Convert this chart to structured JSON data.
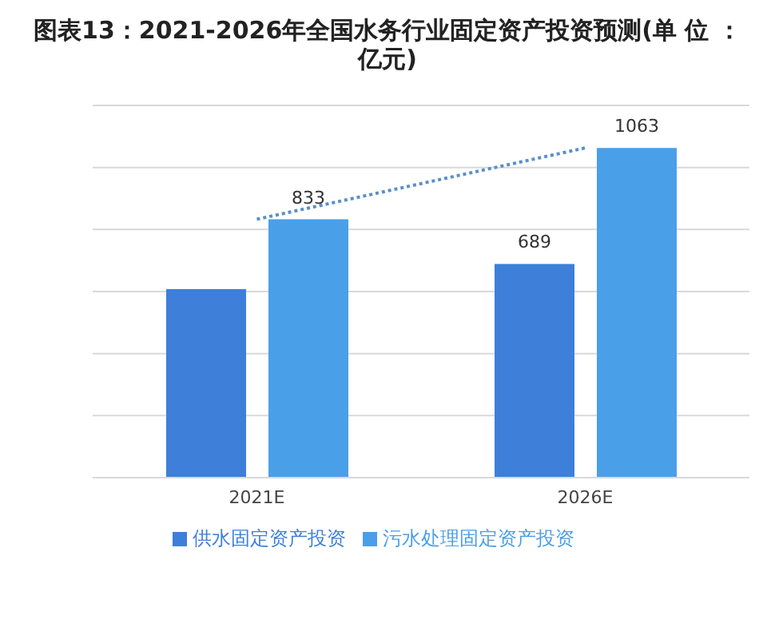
{
  "chart_data": {
    "type": "bar",
    "title": "图表13：2021-2026年全国水务行业固定资产投资预测(单 位 ：亿元)",
    "categories": [
      "2021E",
      "2026E"
    ],
    "series": [
      {
        "name": "供水固定资产投资",
        "color": "#3d7fd9",
        "values": [
          608,
          689
        ],
        "value_labels": [
          null,
          "689"
        ]
      },
      {
        "name": "污水处理固定资产投资",
        "color": "#4a9fe9",
        "values": [
          833,
          1063
        ],
        "value_labels": [
          "833",
          "1063"
        ]
      },
      {
        "type": "line",
        "color": "#5b8fc9",
        "values": [
          833,
          1063
        ],
        "line_style": "dotted",
        "marker": "none"
      }
    ],
    "ylim": [
      0,
      1200
    ],
    "yticks": [
      {
        "value": 0,
        "label": null
      },
      {
        "value": 200,
        "label": null
      },
      {
        "value": 400,
        "label": null
      },
      {
        "value": 600,
        "label": null
      },
      {
        "value": 800,
        "label": null
      },
      {
        "value": 1000,
        "label": null
      },
      {
        "value": 1200,
        "label": null
      }
    ],
    "tick_labels": "x",
    "grid": "y",
    "legend": "bottom"
  }
}
